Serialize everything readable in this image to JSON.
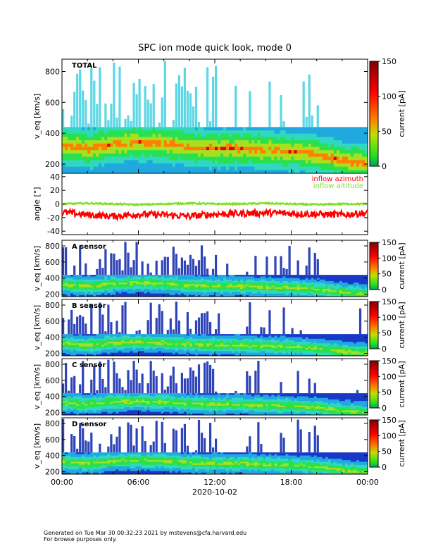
{
  "figure": {
    "title": "SPC ion mode quick look, mode 0",
    "x_date": "2020-10-02",
    "x_ticks": [
      "00:00",
      "06:00",
      "12:00",
      "18:00",
      "00:00"
    ],
    "footer_line1": "Generated on Tue Mar 30 00:32:23 2021 by mstevens@cfa.harvard.edu",
    "footer_line2": "For browse purposes only."
  },
  "colors": {
    "spectro_low": "#1030c0",
    "spectro_mid": "#18e020",
    "spectro_high": "#e00000",
    "azimuth": "#ff0000",
    "altitude": "#80e020"
  },
  "chart_data": [
    {
      "type": "heatmap",
      "panel": "TOTAL",
      "ylabel": "v_eq [km/s]",
      "yticks": [
        200,
        400,
        600,
        800
      ],
      "ylim": [
        140,
        880
      ],
      "xlim": [
        0,
        24
      ],
      "colorbar": {
        "label": "current [pA]",
        "ticks": [
          0,
          50,
          100,
          150
        ],
        "range": [
          0,
          150
        ]
      },
      "ridge_speed_kms": [
        320,
        300,
        330,
        340,
        330,
        310,
        300,
        300,
        290,
        280,
        260,
        220,
        200
      ]
    },
    {
      "type": "line",
      "ylabel": "angle [°]",
      "yticks": [
        -40,
        -20,
        0,
        20,
        40
      ],
      "ylim": [
        -45,
        45
      ],
      "xlim": [
        0,
        24
      ],
      "series": [
        {
          "name": "inflow azimuth",
          "color": "#ff0000",
          "mean_deg": -15,
          "x": [
            0,
            2,
            4,
            6,
            8,
            10,
            12,
            14,
            16,
            18,
            20,
            22,
            24
          ],
          "y": [
            -12,
            -16,
            -18,
            -15,
            -16,
            -18,
            -15,
            -14,
            -13,
            -14,
            -15,
            -16,
            -13
          ]
        },
        {
          "name": "inflow altitude",
          "color": "#80e020",
          "mean_deg": 0,
          "x": [
            0,
            2,
            4,
            6,
            8,
            10,
            12,
            14,
            16,
            18,
            20,
            22,
            24
          ],
          "y": [
            0,
            1,
            0,
            -1,
            0,
            1,
            0,
            0,
            1,
            0,
            -1,
            0,
            0
          ]
        }
      ]
    },
    {
      "type": "heatmap",
      "panel": "A sensor",
      "ylabel": "v_eq [km/s]",
      "yticks": [
        200,
        400,
        600,
        800
      ],
      "ylim": [
        170,
        870
      ],
      "colorbar": {
        "label": "current [pA]",
        "ticks": [
          0,
          50,
          100,
          150
        ]
      }
    },
    {
      "type": "heatmap",
      "panel": "B sensor",
      "ylabel": "v_eq [km/s]",
      "yticks": [
        200,
        400,
        600,
        800
      ],
      "ylim": [
        170,
        870
      ],
      "colorbar": {
        "label": "current [pA]",
        "ticks": [
          0,
          50,
          100,
          150
        ]
      }
    },
    {
      "type": "heatmap",
      "panel": "C sensor",
      "ylabel": "v_eq [km/s]",
      "yticks": [
        200,
        400,
        600,
        800
      ],
      "ylim": [
        170,
        870
      ],
      "colorbar": {
        "label": "current [pA]",
        "ticks": [
          0,
          50,
          100,
          150
        ]
      }
    },
    {
      "type": "heatmap",
      "panel": "D sensor",
      "ylabel": "v_eq [km/s]",
      "yticks": [
        200,
        400,
        600,
        800
      ],
      "ylim": [
        170,
        870
      ],
      "colorbar": {
        "label": "current [pA]",
        "ticks": [
          0,
          50,
          100,
          150
        ]
      }
    }
  ]
}
